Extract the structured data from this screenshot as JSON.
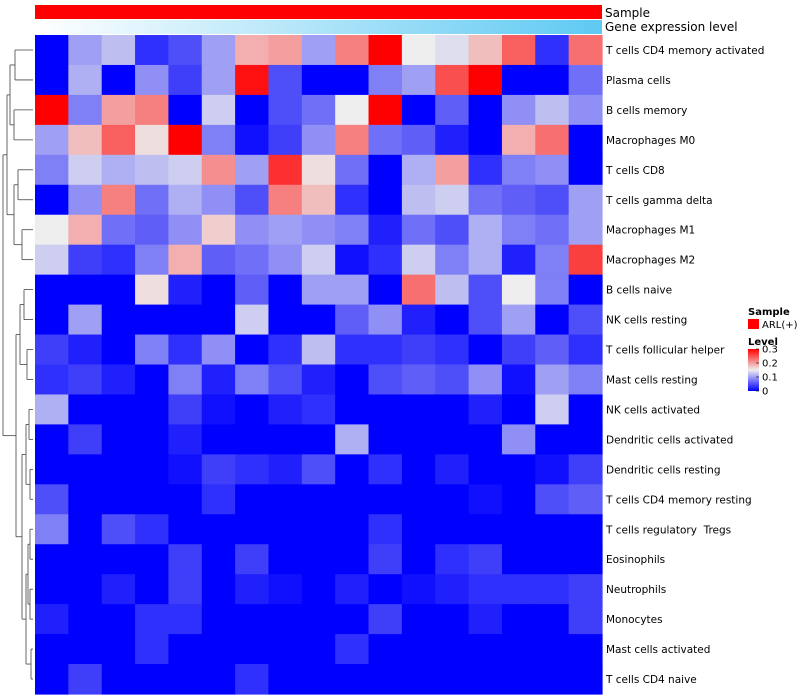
{
  "chart_data": {
    "type": "heatmap",
    "top_annotations": [
      {
        "label": "Sample",
        "color": "#ff0000"
      },
      {
        "label": "Gene expression level",
        "gradient": [
          "#ffffff",
          "#5ec9f2"
        ]
      }
    ],
    "legend": {
      "sample_title": "Sample",
      "sample_item": "ARL(+)",
      "sample_color": "#ff0000",
      "level_title": "Level",
      "level_ticks": [
        "0.3",
        "0.2",
        "0.1",
        "0"
      ],
      "level_tick_values": [
        0.3,
        0.2,
        0.1,
        0
      ]
    },
    "color_scale": {
      "min": 0,
      "mid": 0.15,
      "max": 0.3,
      "low": "#0000ff",
      "mid_color": "#eeeeee",
      "high": "#ff0000"
    },
    "rows": [
      "T cells CD4 memory activated",
      "Plasma cells",
      "B cells memory",
      "Macrophages M0",
      "T cells CD8",
      "T cells gamma delta",
      "Macrophages M1",
      "Macrophages M2",
      "B cells naive",
      "NK cells resting",
      "T cells follicular helper",
      "Mast cells resting",
      "NK cells activated",
      "Dendritic cells activated",
      "Dendritic cells resting",
      "T cells CD4 memory resting",
      "T cells regulatory  Tregs",
      "Eosinophils",
      "Neutrophils",
      "Monocytes",
      "Mast cells activated",
      "T cells CD4 naive"
    ],
    "values": [
      [
        0.0,
        0.1,
        0.12,
        0.03,
        0.05,
        0.1,
        0.19,
        0.2,
        0.1,
        0.22,
        0.3,
        0.15,
        0.14,
        0.18,
        0.24,
        0.03,
        0.23
      ],
      [
        0.0,
        0.11,
        0.0,
        0.09,
        0.04,
        0.1,
        0.29,
        0.05,
        0.0,
        0.0,
        0.08,
        0.1,
        0.25,
        0.3,
        0.0,
        0.0,
        0.07
      ],
      [
        0.3,
        0.08,
        0.2,
        0.22,
        0.0,
        0.13,
        0.0,
        0.05,
        0.07,
        0.15,
        0.3,
        0.0,
        0.06,
        0.0,
        0.09,
        0.12,
        0.09
      ],
      [
        0.1,
        0.18,
        0.24,
        0.16,
        0.3,
        0.08,
        0.01,
        0.04,
        0.09,
        0.22,
        0.07,
        0.06,
        0.02,
        0.0,
        0.19,
        0.23,
        0.0
      ],
      [
        0.08,
        0.13,
        0.11,
        0.12,
        0.13,
        0.21,
        0.1,
        0.27,
        0.16,
        0.07,
        0.0,
        0.11,
        0.2,
        0.03,
        0.08,
        0.09,
        0.0
      ],
      [
        0.0,
        0.09,
        0.22,
        0.07,
        0.11,
        0.09,
        0.05,
        0.22,
        0.18,
        0.03,
        0.0,
        0.12,
        0.13,
        0.07,
        0.06,
        0.05,
        0.1
      ],
      [
        0.15,
        0.19,
        0.07,
        0.06,
        0.09,
        0.17,
        0.09,
        0.1,
        0.09,
        0.08,
        0.02,
        0.07,
        0.05,
        0.11,
        0.08,
        0.07,
        0.1
      ],
      [
        0.13,
        0.04,
        0.03,
        0.08,
        0.19,
        0.06,
        0.07,
        0.09,
        0.13,
        0.01,
        0.03,
        0.13,
        0.08,
        0.11,
        0.02,
        0.08,
        0.26
      ],
      [
        0.0,
        0.0,
        0.0,
        0.16,
        0.02,
        0.0,
        0.06,
        0.0,
        0.1,
        0.1,
        0.0,
        0.23,
        0.12,
        0.05,
        0.15,
        0.08,
        0.0
      ],
      [
        0.0,
        0.1,
        0.0,
        0.0,
        0.0,
        0.0,
        0.13,
        0.0,
        0.0,
        0.06,
        0.09,
        0.02,
        0.0,
        0.05,
        0.1,
        0.0,
        0.05
      ],
      [
        0.04,
        0.02,
        0.0,
        0.08,
        0.03,
        0.09,
        0.0,
        0.03,
        0.12,
        0.03,
        0.03,
        0.04,
        0.03,
        0.0,
        0.04,
        0.06,
        0.03
      ],
      [
        0.03,
        0.04,
        0.02,
        0.0,
        0.08,
        0.02,
        0.08,
        0.05,
        0.02,
        0.0,
        0.05,
        0.06,
        0.05,
        0.09,
        0.01,
        0.1,
        0.08
      ],
      [
        0.11,
        0.0,
        0.0,
        0.0,
        0.04,
        0.01,
        0.0,
        0.02,
        0.03,
        0.0,
        0.0,
        0.0,
        0.0,
        0.02,
        0.0,
        0.13,
        0.0
      ],
      [
        0.0,
        0.04,
        0.0,
        0.0,
        0.02,
        0.0,
        0.0,
        0.0,
        0.0,
        0.11,
        0.0,
        0.0,
        0.0,
        0.0,
        0.09,
        0.0,
        0.0
      ],
      [
        0.0,
        0.0,
        0.0,
        0.0,
        0.01,
        0.04,
        0.03,
        0.02,
        0.05,
        0.0,
        0.03,
        0.0,
        0.02,
        0.0,
        0.0,
        0.01,
        0.04
      ],
      [
        0.05,
        0.0,
        0.0,
        0.0,
        0.0,
        0.03,
        0.0,
        0.0,
        0.0,
        0.0,
        0.0,
        0.0,
        0.0,
        0.01,
        0.0,
        0.05,
        0.06
      ],
      [
        0.08,
        0.0,
        0.05,
        0.03,
        0.0,
        0.0,
        0.0,
        0.0,
        0.0,
        0.0,
        0.03,
        0.0,
        0.0,
        0.0,
        0.0,
        0.0,
        0.0
      ],
      [
        0.0,
        0.0,
        0.0,
        0.0,
        0.04,
        0.0,
        0.04,
        0.0,
        0.0,
        0.0,
        0.04,
        0.0,
        0.03,
        0.04,
        0.0,
        0.0,
        0.0
      ],
      [
        0.0,
        0.0,
        0.02,
        0.0,
        0.04,
        0.0,
        0.02,
        0.01,
        0.0,
        0.02,
        0.0,
        0.01,
        0.02,
        0.03,
        0.03,
        0.03,
        0.04
      ],
      [
        0.02,
        0.0,
        0.0,
        0.03,
        0.03,
        0.0,
        0.0,
        0.0,
        0.0,
        0.0,
        0.04,
        0.0,
        0.0,
        0.02,
        0.0,
        0.0,
        0.04
      ],
      [
        0.0,
        0.0,
        0.0,
        0.03,
        0.0,
        0.0,
        0.0,
        0.0,
        0.0,
        0.03,
        0.0,
        0.0,
        0.0,
        0.0,
        0.0,
        0.0,
        0.0
      ],
      [
        0.0,
        0.04,
        0.0,
        0.0,
        0.0,
        0.0,
        0.03,
        0.0,
        0.0,
        0.0,
        0.0,
        0.0,
        0.0,
        0.0,
        0.0,
        0.0,
        0.0
      ]
    ],
    "n_columns": 17,
    "xlabel": "",
    "ylabel": ""
  }
}
